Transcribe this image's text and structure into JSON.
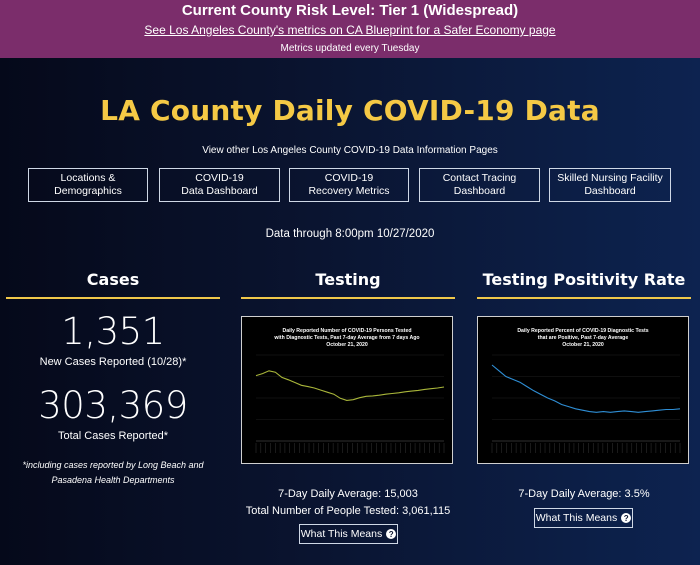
{
  "banner": {
    "tier": "Current County Risk Level: Tier 1 (Widespread)",
    "link": "See Los Angeles County's metrics on CA Blueprint for a Safer Economy page",
    "updated": "Metrics updated every Tuesday",
    "bg_color": "#7b2d6b"
  },
  "title": "LA County Daily COVID-19 Data",
  "subtitle": "View other Los Angeles County COVID-19 Data Information Pages",
  "nav": [
    {
      "line1": "Locations &",
      "line2": "Demographics"
    },
    {
      "line1": "COVID-19",
      "line2": "Data Dashboard"
    },
    {
      "line1": "COVID-19",
      "line2": "Recovery Metrics"
    },
    {
      "line1": "Contact Tracing",
      "line2": "Dashboard"
    },
    {
      "line1": "Skilled Nursing Facility",
      "line2": "Dashboard"
    }
  ],
  "as_of": "Data through 8:00pm 10/27/2020",
  "cases": {
    "heading": "Cases",
    "new_cases": "1,351",
    "new_cases_label": "New Cases Reported (10/28)*",
    "total_cases": "303,369",
    "total_cases_label": "Total Cases Reported*",
    "footnote": "*including cases reported by Long Beach and Pasadena Health Departments"
  },
  "testing": {
    "heading": "Testing",
    "avg": "7-Day Daily Average: 15,003",
    "total": "Total Number of People Tested: 3,061,115",
    "button": "What This Means"
  },
  "positivity": {
    "heading": "Testing Positivity Rate",
    "avg": "7-Day Daily Average: 3.5%",
    "button": "What This Means"
  },
  "chart_data": [
    {
      "type": "line",
      "title": "Daily Reported Number of COVID-19 Persons Tested with Diagnostic Tests, Past 7-day Average from 7 days Ago",
      "subtitle": "October 21, 2020",
      "color": "#a9b63a",
      "ylim": [
        0,
        25000
      ],
      "y": [
        19000,
        19600,
        20400,
        20000,
        18500,
        17800,
        17000,
        16200,
        15800,
        15400,
        14800,
        14200,
        13600,
        12400,
        11800,
        12000,
        12600,
        13000,
        13100,
        13300,
        13600,
        13800,
        14000,
        14300,
        14500,
        14700,
        15000,
        15200,
        15400,
        15700
      ]
    },
    {
      "type": "line",
      "title": "Daily Reported Percent of COVID-19 Diagnostic Tests that are Positive, Past 7-day Average",
      "subtitle": "October 21, 2020",
      "color": "#2f8fd6",
      "ylim": [
        0,
        12
      ],
      "y": [
        10.6,
        9.8,
        9.0,
        8.6,
        8.2,
        7.6,
        7.0,
        6.5,
        6.0,
        5.6,
        5.1,
        4.8,
        4.5,
        4.3,
        4.1,
        4.0,
        4.1,
        4.0,
        4.1,
        4.2,
        4.1,
        4.0,
        4.1,
        4.2,
        4.3,
        4.4,
        4.4,
        4.5
      ]
    }
  ]
}
